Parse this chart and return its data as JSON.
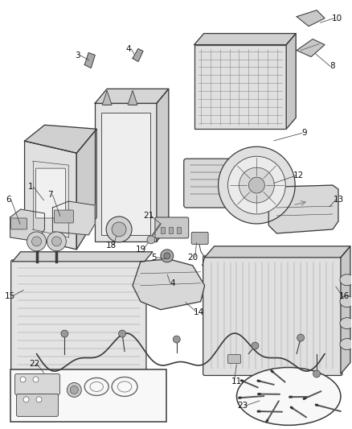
{
  "bg_color": "#ffffff",
  "fig_width": 4.38,
  "fig_height": 5.33,
  "dpi": 100,
  "lc": "#3a3a3a",
  "lc_thin": "#555555",
  "fill_light": "#e8e8e8",
  "fill_mid": "#d8d8d8",
  "fill_dark": "#c8c8c8",
  "label_fs": 7.5
}
